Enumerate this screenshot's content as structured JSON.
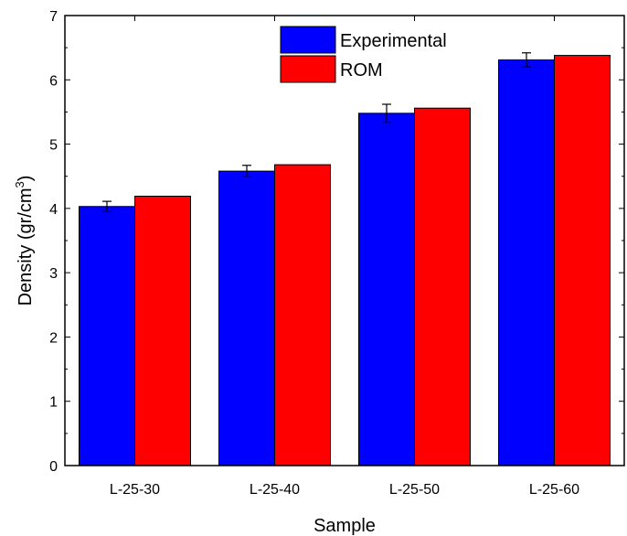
{
  "chart_data": {
    "type": "bar",
    "categories": [
      "L-25-30",
      "L-25-40",
      "L-25-50",
      "L-25-60"
    ],
    "series": [
      {
        "name": "Experimental",
        "color": "#0000ff",
        "values": [
          4.03,
          4.58,
          5.48,
          6.31
        ],
        "errors": [
          0.08,
          0.09,
          0.14,
          0.11
        ]
      },
      {
        "name": "ROM",
        "color": "#ff0000",
        "values": [
          4.19,
          4.68,
          5.56,
          6.38
        ]
      }
    ],
    "xlabel": "Sample",
    "ylabel_main": "Density (gr/cm",
    "ylabel_sup": "3",
    "ylabel_close": ")",
    "ylim": [
      0,
      7
    ],
    "yticks": [
      "0",
      "1",
      "2",
      "3",
      "4",
      "5",
      "6",
      "7"
    ],
    "legend_position": "top-center",
    "grid": false
  }
}
